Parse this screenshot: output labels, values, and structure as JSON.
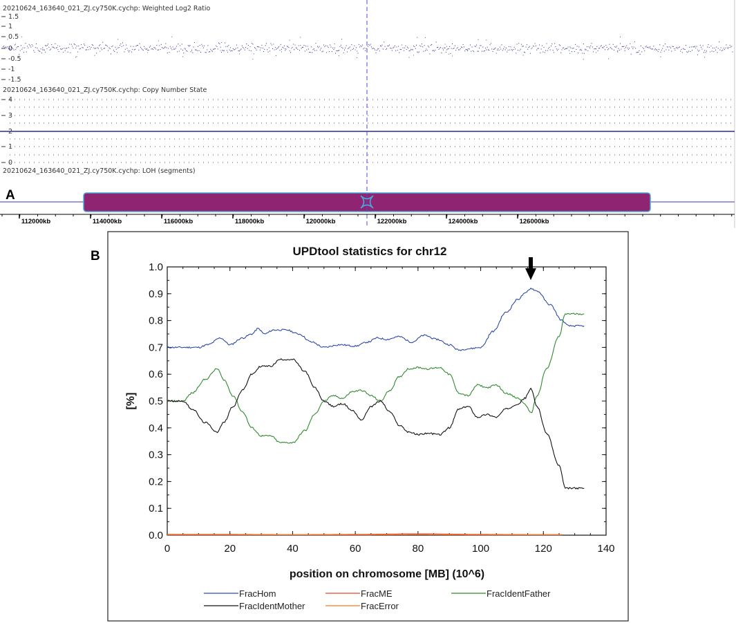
{
  "panel_a": {
    "letter": "A",
    "tracks": [
      {
        "label": "20210624_163640_021_ZJ.cy750K.cychp: Weighted Log2 Ratio",
        "yticks": [
          "1.5",
          "1",
          "0.5",
          "0",
          "-0.5",
          "-1",
          "-1.5"
        ]
      },
      {
        "label": "20210624_163640_021_ZJ.cy750K.cychp: Copy Number State",
        "yticks": [
          "4",
          "3",
          "2",
          "1",
          "0"
        ]
      },
      {
        "label": "20210624_163640_021_ZJ.cy750K.cychp: LOH (segments)"
      }
    ],
    "kb_ticks": [
      "112000kb",
      "114000kb",
      "116000kb",
      "118000kb",
      "120000kb",
      "122000kb",
      "124000kb",
      "126000kb"
    ],
    "colors": {
      "signal": "#1a1a8c",
      "loh_segment": "#8e2472",
      "segment_outline": "#4aa8d8",
      "cursor": "#4a4adb"
    }
  },
  "panel_b": {
    "letter": "B",
    "legend": [
      "FracHom",
      "FracME",
      "FracIdentFather",
      "FracIdentMother",
      "FracError"
    ]
  },
  "chart_data": [
    {
      "type": "line",
      "title": "UPDtool statistics for chr12",
      "xlabel": "position on chromosome [MB] (10^6)",
      "ylabel": "[%]",
      "xlim": [
        0,
        140
      ],
      "ylim": [
        0.0,
        1.0
      ],
      "xticks": [
        "0",
        "20",
        "40",
        "60",
        "80",
        "100",
        "120",
        "140"
      ],
      "yticks": [
        "0.0",
        "0.1",
        "0.2",
        "0.3",
        "0.4",
        "0.5",
        "0.6",
        "0.7",
        "0.8",
        "0.9",
        "1.0"
      ],
      "annotation": "arrow at x≈116 pointing to FracHom peak",
      "series": [
        {
          "name": "FracHom",
          "color": "#2b4aa8",
          "x": [
            0,
            5,
            10,
            13,
            17,
            20,
            24,
            27,
            29,
            31,
            34,
            38,
            42,
            46,
            50,
            55,
            60,
            64,
            67,
            70,
            74,
            78,
            82,
            86,
            90,
            93,
            96,
            100,
            104,
            108,
            112,
            114,
            116,
            118,
            122,
            126,
            128,
            133
          ],
          "y": [
            0.7,
            0.7,
            0.7,
            0.71,
            0.735,
            0.71,
            0.735,
            0.75,
            0.77,
            0.75,
            0.765,
            0.765,
            0.75,
            0.72,
            0.7,
            0.71,
            0.705,
            0.72,
            0.735,
            0.73,
            0.74,
            0.72,
            0.745,
            0.73,
            0.71,
            0.69,
            0.695,
            0.7,
            0.76,
            0.83,
            0.88,
            0.9,
            0.92,
            0.91,
            0.86,
            0.8,
            0.78,
            0.78
          ]
        },
        {
          "name": "FracME",
          "color": "#e8452c",
          "x": [
            0,
            20,
            40,
            60,
            80,
            100,
            120,
            126
          ],
          "y": [
            0.003,
            0.003,
            0.002,
            0.003,
            0.005,
            0.003,
            0.002,
            0.002
          ]
        },
        {
          "name": "FracIdentFather",
          "color": "#2f8a2f",
          "x": [
            0,
            5,
            8,
            12,
            16,
            18,
            21,
            24,
            27,
            30,
            33,
            36,
            40,
            44,
            47,
            50,
            53,
            56,
            59,
            62,
            65,
            68,
            71,
            74,
            77,
            80,
            83,
            87,
            90,
            93,
            96,
            99,
            102,
            105,
            108,
            112,
            114,
            116,
            118,
            121,
            125,
            127,
            133
          ],
          "y": [
            0.5,
            0.5,
            0.53,
            0.58,
            0.62,
            0.58,
            0.52,
            0.46,
            0.4,
            0.37,
            0.37,
            0.345,
            0.345,
            0.39,
            0.45,
            0.5,
            0.52,
            0.51,
            0.535,
            0.54,
            0.52,
            0.5,
            0.54,
            0.59,
            0.62,
            0.625,
            0.62,
            0.625,
            0.6,
            0.53,
            0.52,
            0.56,
            0.55,
            0.56,
            0.53,
            0.51,
            0.49,
            0.455,
            0.52,
            0.62,
            0.74,
            0.825,
            0.825
          ]
        },
        {
          "name": "FracIdentMother",
          "color": "#111111",
          "x": [
            0,
            5,
            8,
            12,
            16,
            18,
            21,
            24,
            27,
            30,
            33,
            36,
            40,
            44,
            47,
            50,
            53,
            56,
            59,
            62,
            65,
            68,
            71,
            74,
            77,
            80,
            83,
            87,
            90,
            93,
            96,
            99,
            102,
            105,
            108,
            112,
            114,
            116,
            118,
            121,
            125,
            127,
            133
          ],
          "y": [
            0.5,
            0.5,
            0.47,
            0.42,
            0.385,
            0.42,
            0.48,
            0.54,
            0.6,
            0.63,
            0.63,
            0.655,
            0.655,
            0.61,
            0.55,
            0.5,
            0.48,
            0.49,
            0.465,
            0.43,
            0.48,
            0.5,
            0.46,
            0.41,
            0.385,
            0.375,
            0.38,
            0.375,
            0.4,
            0.47,
            0.48,
            0.44,
            0.45,
            0.44,
            0.47,
            0.49,
            0.51,
            0.545,
            0.48,
            0.38,
            0.26,
            0.175,
            0.175
          ]
        },
        {
          "name": "FracError",
          "color": "#f07a1e",
          "x": [
            0,
            20,
            40,
            60,
            80,
            100,
            120,
            126
          ],
          "y": [
            0.001,
            0.001,
            0.001,
            0.001,
            0.002,
            0.001,
            0.001,
            0.001
          ]
        }
      ]
    }
  ]
}
